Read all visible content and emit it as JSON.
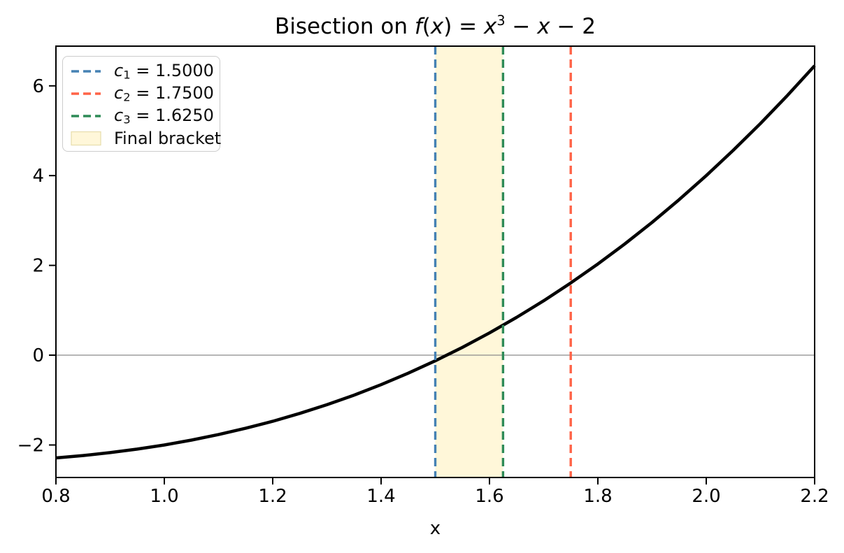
{
  "figure": {
    "background": "#ffffff"
  },
  "title": {
    "full": "Bisection on f(x) = x³ − x − 2",
    "parts": {
      "p0": "Bisection on ",
      "p1": "f",
      "p2": "(",
      "p3": "x",
      "p4": ") = ",
      "p5": "x",
      "p6": "3",
      "p7": " − ",
      "p8": "x",
      "p9": " − 2"
    }
  },
  "axes": {
    "xlabel": "x"
  },
  "legend": {
    "items": [
      {
        "kind": "line",
        "color": "#4682B4",
        "var": "c",
        "sub": "1",
        "rest": " = 1.5000",
        "full": "c1 = 1.5000"
      },
      {
        "kind": "line",
        "color": "#FF6347",
        "var": "c",
        "sub": "2",
        "rest": " = 1.7500",
        "full": "c2 = 1.7500"
      },
      {
        "kind": "line",
        "color": "#2E8B57",
        "var": "c",
        "sub": "3",
        "rest": " = 1.6250",
        "full": "c3 = 1.6250"
      },
      {
        "kind": "patch",
        "fill": "#FFF7D9",
        "edge": "#E8DFAF",
        "label": "Final bracket"
      }
    ]
  },
  "chart_data": {
    "type": "line",
    "title": "Bisection on f(x) = x^3 - x - 2",
    "xlabel": "x",
    "ylabel": "",
    "grid": false,
    "legend_position": "upper left",
    "xlim": [
      0.8,
      2.2
    ],
    "ylim": [
      -2.7248,
      6.8848
    ],
    "xticks": [
      0.8,
      1.0,
      1.2,
      1.4,
      1.6,
      1.8,
      2.0,
      2.2
    ],
    "xtick_labels": [
      "0.8",
      "1.0",
      "1.2",
      "1.4",
      "1.6",
      "1.8",
      "2.0",
      "2.2"
    ],
    "yticks": [
      -2,
      0,
      2,
      4,
      6
    ],
    "ytick_labels": [
      "−2",
      "0",
      "2",
      "4",
      "6"
    ],
    "series": [
      {
        "name": "f(x) = x^3 - x - 2",
        "color": "#000000",
        "linewidth": 4.5,
        "x": [
          0.8,
          0.85,
          0.9,
          0.95,
          1.0,
          1.05,
          1.1,
          1.15,
          1.2,
          1.25,
          1.3,
          1.35,
          1.4,
          1.45,
          1.5,
          1.55,
          1.6,
          1.65,
          1.7,
          1.75,
          1.8,
          1.85,
          1.9,
          1.95,
          2.0,
          2.05,
          2.1,
          2.15,
          2.2
        ],
        "y": [
          -2.288,
          -2.236,
          -2.171,
          -2.093,
          -2.0,
          -1.892,
          -1.769,
          -1.629,
          -1.472,
          -1.297,
          -1.103,
          -0.89,
          -0.656,
          -0.401,
          -0.125,
          0.174,
          0.496,
          0.842,
          1.213,
          1.609,
          2.032,
          2.482,
          2.959,
          3.465,
          4.0,
          4.565,
          5.161,
          5.788,
          6.448
        ]
      }
    ],
    "vlines": [
      {
        "label": "c1 = 1.5000",
        "x": 1.5,
        "color": "#4682B4",
        "style": "dashed"
      },
      {
        "label": "c2 = 1.7500",
        "x": 1.75,
        "color": "#FF6347",
        "style": "dashed"
      },
      {
        "label": "c3 = 1.6250",
        "x": 1.625,
        "color": "#2E8B57",
        "style": "dashed"
      }
    ],
    "axvspan": {
      "label": "Final bracket",
      "x0": 1.5,
      "x1": 1.625,
      "fill": "#FFF7D9"
    },
    "hline": {
      "y": 0,
      "color": "#8A8A8A"
    },
    "frame_color": "#000000"
  }
}
